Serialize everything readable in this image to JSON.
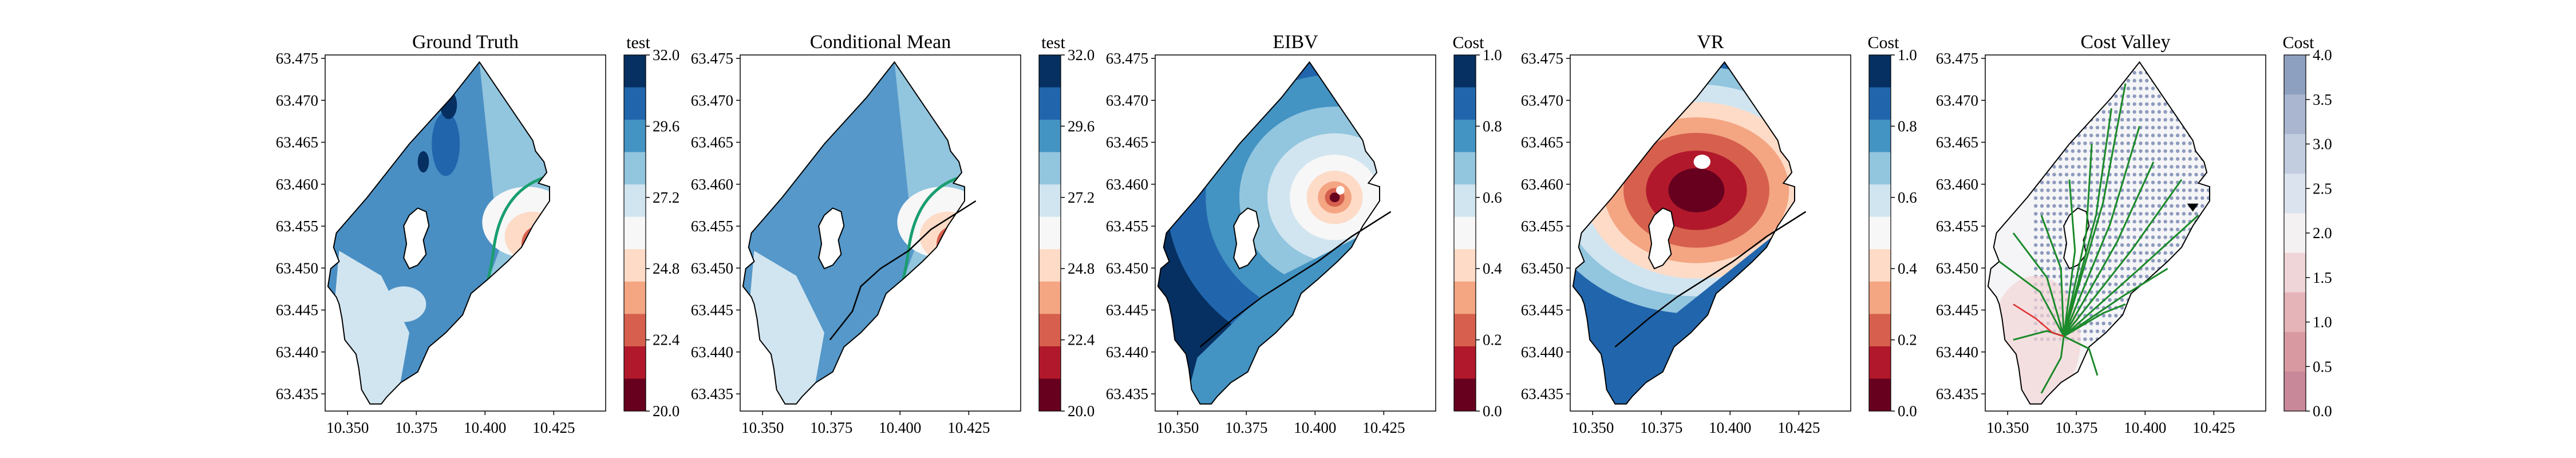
{
  "chart_data": [
    {
      "type": "heatmap",
      "title": "Ground Truth",
      "xticks": [
        "10.350",
        "10.375",
        "10.400",
        "10.425"
      ],
      "yticks": [
        "63.475",
        "63.470",
        "63.465",
        "63.460",
        "63.455",
        "63.450",
        "63.445",
        "63.440",
        "63.435"
      ],
      "colorbar": {
        "label": "test",
        "ticks": [
          "32.0",
          "29.6",
          "27.2",
          "24.8",
          "22.4",
          "20.0"
        ],
        "range": [
          20,
          32
        ]
      },
      "overlays": [
        "boundary polygon",
        "green threshold contour"
      ]
    },
    {
      "type": "heatmap",
      "title": "Conditional Mean",
      "xticks": [
        "10.350",
        "10.375",
        "10.400",
        "10.425"
      ],
      "yticks": [
        "63.475",
        "63.470",
        "63.465",
        "63.460",
        "63.455",
        "63.450",
        "63.445",
        "63.440",
        "63.435"
      ],
      "colorbar": {
        "label": "test",
        "ticks": [
          "32.0",
          "29.6",
          "27.2",
          "24.8",
          "22.4",
          "20.0"
        ],
        "range": [
          20,
          32
        ]
      },
      "overlays": [
        "boundary polygon",
        "green threshold contour",
        "black sampling path"
      ]
    },
    {
      "type": "heatmap",
      "title": "EIBV",
      "xticks": [
        "10.350",
        "10.375",
        "10.400",
        "10.425"
      ],
      "yticks": [
        "63.475",
        "63.470",
        "63.465",
        "63.460",
        "63.455",
        "63.450",
        "63.445",
        "63.440",
        "63.435"
      ],
      "colorbar": {
        "label": "Cost",
        "ticks": [
          "1.0",
          "0.8",
          "0.6",
          "0.4",
          "0.2",
          "0.0"
        ],
        "range": [
          0,
          1
        ]
      },
      "overlays": [
        "boundary polygon",
        "black sampling path"
      ]
    },
    {
      "type": "heatmap",
      "title": "VR",
      "xticks": [
        "10.350",
        "10.375",
        "10.400",
        "10.425"
      ],
      "yticks": [
        "63.475",
        "63.470",
        "63.465",
        "63.460",
        "63.455",
        "63.450",
        "63.445",
        "63.440",
        "63.435"
      ],
      "colorbar": {
        "label": "Cost",
        "ticks": [
          "1.0",
          "0.8",
          "0.6",
          "0.4",
          "0.2",
          "0.0"
        ],
        "range": [
          0,
          1
        ]
      },
      "overlays": [
        "boundary polygon",
        "black sampling path"
      ]
    },
    {
      "type": "heatmap",
      "title": "Cost Valley",
      "xticks": [
        "10.350",
        "10.375",
        "10.400",
        "10.425"
      ],
      "yticks": [
        "63.475",
        "63.470",
        "63.465",
        "63.460",
        "63.455",
        "63.450",
        "63.445",
        "63.440",
        "63.435"
      ],
      "colorbar": {
        "label": "Cost",
        "ticks": [
          "4.0",
          "3.5",
          "3.0",
          "2.5",
          "2.0",
          "1.5",
          "1.0",
          "0.5",
          "0.0"
        ],
        "range": [
          0,
          4
        ]
      },
      "overlays": [
        "boundary polygon",
        "grid of candidate locations",
        "green RRT tree",
        "red path"
      ]
    }
  ],
  "colors": {
    "rdbu": [
      "#67001f",
      "#b2182b",
      "#d6604d",
      "#f4a582",
      "#fddbc7",
      "#f7f7f7",
      "#d1e5f0",
      "#92c5de",
      "#4393c3",
      "#2166ac",
      "#053061"
    ],
    "contour": "#1a9e6f",
    "tree": "#1b8a2a",
    "path": "#000000",
    "grid_dot": "#8e9bbd"
  }
}
